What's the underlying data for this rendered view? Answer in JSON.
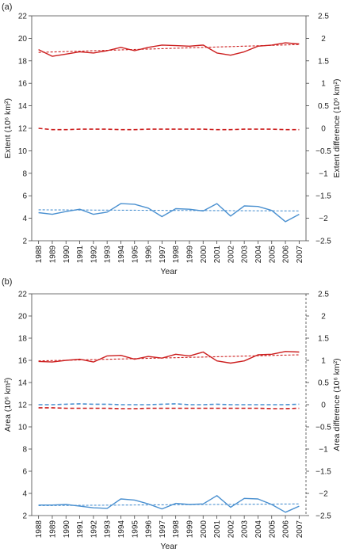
{
  "chart_data": [
    {
      "panel_label": "(a)",
      "type": "line",
      "x": [
        1988,
        1989,
        1990,
        1991,
        1992,
        1993,
        1994,
        1995,
        1996,
        1997,
        1998,
        1999,
        2000,
        2001,
        2002,
        2003,
        2004,
        2005,
        2006,
        2007
      ],
      "xlabel": "Year",
      "ylabel": "Extent (10⁶ km²)",
      "ylabel_right": "Extent difference (10⁶ km²)",
      "ylim": [
        2,
        22
      ],
      "ylim_right": [
        -2.5,
        2.5
      ],
      "yticks": [
        2,
        4,
        6,
        8,
        10,
        12,
        14,
        16,
        18,
        20,
        22
      ],
      "yticks_right": [
        "2.5",
        "2",
        "1.5",
        "1",
        "0.5",
        "0",
        "−0.5",
        "−1",
        "−1.5",
        "−2",
        "−2.5"
      ],
      "grid": false,
      "series": [
        {
          "axis": "left",
          "color": "#cc1e1e",
          "style": "solid",
          "trend": "dashed",
          "values": [
            19.0,
            18.4,
            18.6,
            18.8,
            18.7,
            18.9,
            19.2,
            18.9,
            19.2,
            19.4,
            19.35,
            19.3,
            19.4,
            18.7,
            18.5,
            18.8,
            19.3,
            19.4,
            19.6,
            19.5
          ],
          "trend_values": [
            18.75,
            19.45
          ]
        },
        {
          "axis": "right",
          "color": "#cc1e1e",
          "style": "dashed",
          "values": [
            0.0,
            -0.03,
            -0.03,
            -0.02,
            -0.02,
            -0.02,
            -0.03,
            -0.03,
            -0.02,
            -0.02,
            -0.02,
            -0.02,
            -0.02,
            -0.03,
            -0.03,
            -0.02,
            -0.02,
            -0.02,
            -0.03,
            -0.03
          ]
        },
        {
          "axis": "left",
          "color": "#4a90d0",
          "style": "solid",
          "trend": "dashed",
          "values": [
            4.5,
            4.35,
            4.6,
            4.8,
            4.35,
            4.55,
            5.3,
            5.25,
            4.9,
            4.15,
            4.85,
            4.8,
            4.65,
            5.3,
            4.2,
            5.1,
            5.05,
            4.7,
            3.7,
            4.35
          ],
          "trend_values": [
            4.75,
            4.65
          ]
        }
      ]
    },
    {
      "panel_label": "(b)",
      "type": "line",
      "x": [
        1988,
        1989,
        1990,
        1991,
        1992,
        1993,
        1994,
        1995,
        1996,
        1997,
        1998,
        1999,
        2000,
        2001,
        2002,
        2003,
        2004,
        2005,
        2006,
        2007
      ],
      "xlabel": "Year",
      "ylabel": "Area (10⁶ km²)",
      "ylabel_right": "Area difference (10⁶ km²)",
      "ylim": [
        2,
        22
      ],
      "ylim_right": [
        -2.5,
        2.5
      ],
      "yticks": [
        2,
        4,
        6,
        8,
        10,
        12,
        14,
        16,
        18,
        20,
        22
      ],
      "yticks_right": [
        "2.5",
        "2",
        "1.5",
        "1",
        "0.5",
        "0",
        "−0.5",
        "−1",
        "−1.5",
        "−2",
        "−2.5"
      ],
      "grid": false,
      "series": [
        {
          "axis": "left",
          "color": "#cc1e1e",
          "style": "solid",
          "trend": "dashed",
          "values": [
            15.9,
            15.85,
            16.0,
            16.1,
            15.85,
            16.4,
            16.45,
            16.1,
            16.35,
            16.2,
            16.55,
            16.4,
            16.75,
            15.95,
            15.75,
            15.95,
            16.5,
            16.55,
            16.8,
            16.75
          ],
          "trend_values": [
            15.95,
            16.5
          ]
        },
        {
          "axis": "right",
          "color": "#cc1e1e",
          "style": "dashed",
          "values": [
            -0.07,
            -0.07,
            -0.08,
            -0.08,
            -0.08,
            -0.08,
            -0.09,
            -0.09,
            -0.08,
            -0.08,
            -0.08,
            -0.08,
            -0.08,
            -0.08,
            -0.08,
            -0.08,
            -0.08,
            -0.09,
            -0.09,
            -0.08
          ]
        },
        {
          "axis": "right",
          "color": "#4a90d0",
          "style": "dashed",
          "values": [
            0.0,
            0.0,
            0.01,
            0.02,
            0.01,
            0.01,
            0.0,
            0.0,
            0.0,
            0.01,
            0.02,
            0.0,
            0.0,
            0.01,
            0.0,
            0.0,
            0.0,
            0.0,
            0.0,
            0.01
          ]
        },
        {
          "axis": "left",
          "color": "#4a90d0",
          "style": "solid",
          "trend": "dashed",
          "values": [
            2.95,
            2.95,
            3.0,
            2.85,
            2.7,
            2.65,
            3.5,
            3.4,
            3.05,
            2.6,
            3.1,
            3.0,
            3.05,
            3.8,
            2.75,
            3.55,
            3.5,
            3.0,
            2.3,
            2.85
          ],
          "trend_values": [
            2.9,
            3.05
          ]
        }
      ]
    }
  ]
}
